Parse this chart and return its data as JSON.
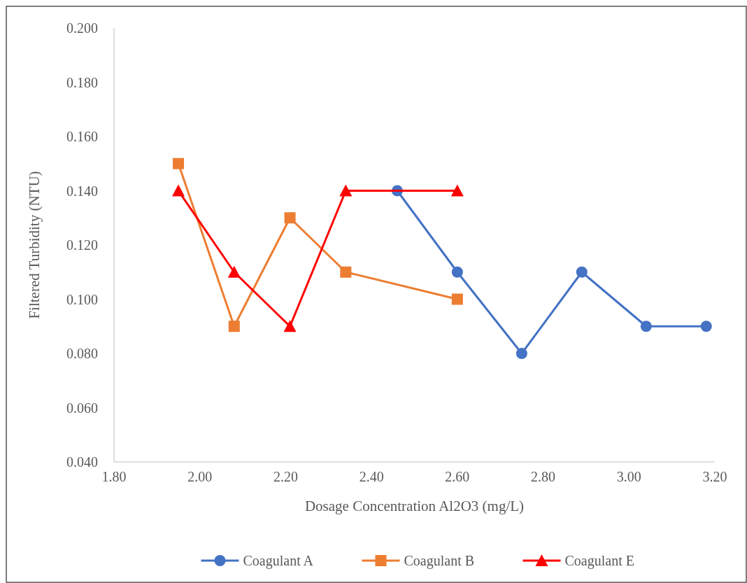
{
  "chart_data": {
    "type": "line",
    "xlabel": "Dosage Concentration Al2O3 (mg/L)",
    "ylabel": "Filtered Turbidity (NTU)",
    "xlim": [
      1.8,
      3.2
    ],
    "xticks": [
      {
        "value": 1.8,
        "label": "1.80"
      },
      {
        "value": 2.0,
        "label": "2.00"
      },
      {
        "value": 2.2,
        "label": "2.20"
      },
      {
        "value": 2.4,
        "label": "2.40"
      },
      {
        "value": 2.6,
        "label": "2.60"
      },
      {
        "value": 2.8,
        "label": "2.80"
      },
      {
        "value": 3.0,
        "label": "3.00"
      },
      {
        "value": 3.2,
        "label": "3.20"
      }
    ],
    "ylim": [
      0.04,
      0.2
    ],
    "yticks": [
      {
        "value": 0.04,
        "label": "0.040"
      },
      {
        "value": 0.06,
        "label": "0.060"
      },
      {
        "value": 0.08,
        "label": "0.080"
      },
      {
        "value": 0.1,
        "label": "0.100"
      },
      {
        "value": 0.12,
        "label": "0.120"
      },
      {
        "value": 0.14,
        "label": "0.140"
      },
      {
        "value": 0.16,
        "label": "0.160"
      },
      {
        "value": 0.18,
        "label": "0.180"
      },
      {
        "value": 0.2,
        "label": "0.200"
      }
    ],
    "grid": false,
    "legend": "bottom",
    "line_style": "solid",
    "series": [
      {
        "name": "Coagulant A",
        "color": "#4472c4",
        "marker": "circle",
        "x": [
          2.46,
          2.6,
          2.75,
          2.89,
          3.04,
          3.18
        ],
        "values": [
          0.14,
          0.11,
          0.08,
          0.11,
          0.09,
          0.09
        ]
      },
      {
        "name": "Coagulant B",
        "color": "#ed7d31",
        "marker": "square",
        "x": [
          1.95,
          2.08,
          2.21,
          2.34,
          2.6
        ],
        "values": [
          0.15,
          0.09,
          0.13,
          0.11,
          0.1
        ]
      },
      {
        "name": "Coagulant E",
        "color": "#ff0000",
        "marker": "triangle",
        "x": [
          1.95,
          2.08,
          2.21,
          2.34,
          2.6
        ],
        "values": [
          0.14,
          0.11,
          0.09,
          0.14,
          0.14
        ]
      }
    ]
  }
}
